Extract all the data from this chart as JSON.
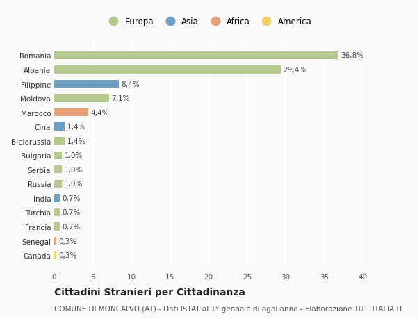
{
  "countries": [
    "Romania",
    "Albania",
    "Filippine",
    "Moldova",
    "Marocco",
    "Cina",
    "Bielorussia",
    "Bulgaria",
    "Serbia",
    "Russia",
    "India",
    "Turchia",
    "Francia",
    "Senegal",
    "Canada"
  ],
  "values": [
    36.8,
    29.4,
    8.4,
    7.1,
    4.4,
    1.4,
    1.4,
    1.0,
    1.0,
    1.0,
    0.7,
    0.7,
    0.7,
    0.3,
    0.3
  ],
  "labels": [
    "36,8%",
    "29,4%",
    "8,4%",
    "7,1%",
    "4,4%",
    "1,4%",
    "1,4%",
    "1,0%",
    "1,0%",
    "1,0%",
    "0,7%",
    "0,7%",
    "0,7%",
    "0,3%",
    "0,3%"
  ],
  "continents": [
    "Europa",
    "Europa",
    "Asia",
    "Europa",
    "Africa",
    "Asia",
    "Europa",
    "Europa",
    "Europa",
    "Europa",
    "Asia",
    "Europa",
    "Europa",
    "Africa",
    "America"
  ],
  "colors": {
    "Europa": "#b5c98e",
    "Asia": "#6e9ec2",
    "Africa": "#e8a07a",
    "America": "#f0d060"
  },
  "legend_order": [
    "Europa",
    "Asia",
    "Africa",
    "America"
  ],
  "xlim": [
    0,
    40
  ],
  "xticks": [
    0,
    5,
    10,
    15,
    20,
    25,
    30,
    35,
    40
  ],
  "title": "Cittadini Stranieri per Cittadinanza",
  "subtitle": "COMUNE DI MONCALVO (AT) - Dati ISTAT al 1° gennaio di ogni anno - Elaborazione TUTTITALIA.IT",
  "bg_color": "#f9f9f9",
  "grid_color": "#ffffff",
  "title_fontsize": 10,
  "subtitle_fontsize": 7.5,
  "label_fontsize": 7.5,
  "tick_fontsize": 7.5,
  "legend_fontsize": 8.5
}
